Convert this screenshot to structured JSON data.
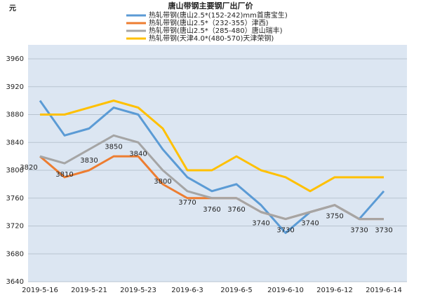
{
  "chart_data": {
    "type": "line",
    "title": "唐山带钢主要钢厂出厂价",
    "y_label": "元",
    "categories": [
      "2019-5-16",
      null,
      "2019-5-21",
      null,
      "2019-5-23",
      null,
      "2019-6-3",
      null,
      "2019-6-5",
      null,
      "2019-6-10",
      null,
      "2019-6-12",
      null,
      "2019-6-14"
    ],
    "series": [
      {
        "name": "热轧带钢(唐山2.5*(152-242)mm首唐宝生)",
        "color": "#5b9bd5",
        "values": [
          3900,
          3850,
          3860,
          3890,
          3880,
          3830,
          3790,
          3770,
          3780,
          3750,
          3710,
          3740,
          3750,
          3730,
          3770
        ]
      },
      {
        "name": "热轧带钢(唐山2.5*（232-355）津西)",
        "color": "#ed7d31",
        "values": [
          3820,
          3790,
          3800,
          3820,
          3820,
          3780,
          3760,
          3760,
          3760,
          3740,
          3730,
          3740,
          3750,
          3730,
          3730
        ]
      },
      {
        "name": "热轧带钢(唐山2.5*（285-480）唐山瑞丰)",
        "color": "#a5a5a5",
        "values": [
          3820,
          3810,
          3830,
          3850,
          3840,
          3800,
          3770,
          3760,
          3760,
          3740,
          3730,
          3740,
          3750,
          3730,
          3730
        ],
        "show_labels": true
      },
      {
        "name": "热轧带钢(天津4.0*(480-570)天津荣钢)",
        "color": "#ffc000",
        "values": [
          3880,
          3880,
          3890,
          3900,
          3890,
          3860,
          3800,
          3800,
          3820,
          3800,
          3790,
          3770,
          3790,
          3790,
          3790
        ]
      }
    ],
    "ylim": [
      3640,
      3960
    ],
    "yticks": [
      3640,
      3680,
      3720,
      3760,
      3800,
      3840,
      3880,
      3920,
      3960
    ],
    "grid": true
  }
}
